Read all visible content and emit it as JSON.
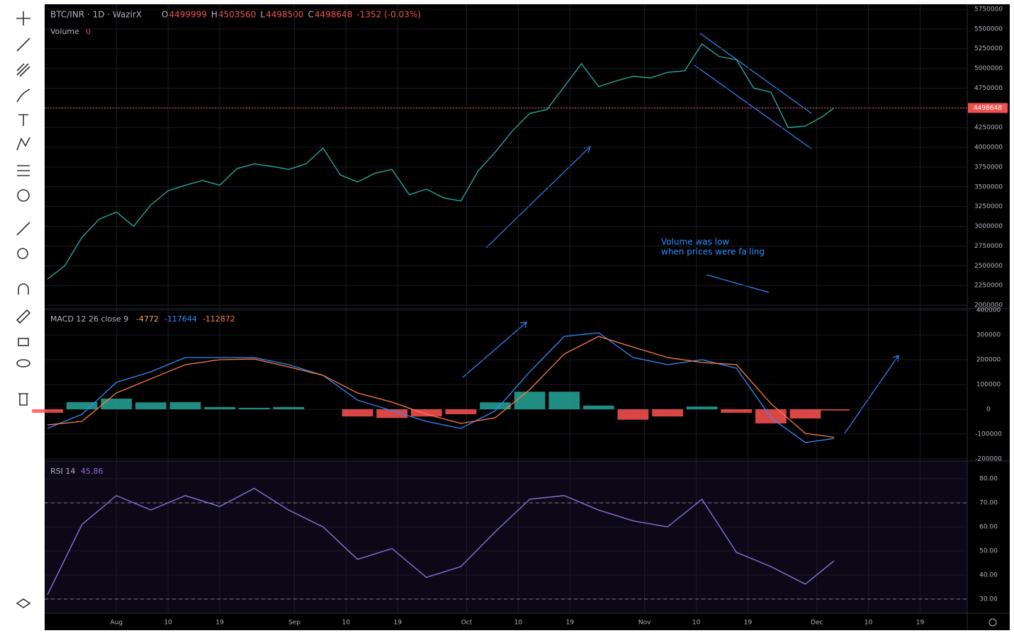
{
  "header": {
    "symbol": "BTC/INR · 1D · WazirX",
    "ohlc": [
      {
        "key": "O",
        "value": 4499999
      },
      {
        "key": "H",
        "value": 4503560
      },
      {
        "key": "L",
        "value": 4498500
      },
      {
        "key": "C",
        "value": 4498648
      }
    ],
    "change": "-1352 (-0.03%)"
  },
  "volume_label": {
    "name": "Volume",
    "value": 0
  },
  "annotation": [
    "Volume was low",
    "when prices were falling"
  ],
  "x_axis": {
    "xlim": [
      -0.5,
      160.2
    ],
    "xticks": [
      {
        "value": 12,
        "label": "Aug"
      },
      {
        "value": 21,
        "label": "10"
      },
      {
        "value": 30,
        "label": "19"
      },
      {
        "value": 43,
        "label": "Sep"
      },
      {
        "value": 52,
        "label": "10"
      },
      {
        "value": 61,
        "label": "19"
      },
      {
        "value": 73,
        "label": "Oct"
      },
      {
        "value": 82,
        "label": "10"
      },
      {
        "value": 91,
        "label": "19"
      },
      {
        "value": 104,
        "label": "Nov"
      },
      {
        "value": 113,
        "label": "10"
      },
      {
        "value": 122,
        "label": "19"
      },
      {
        "value": 134,
        "label": "Dec"
      },
      {
        "value": 143,
        "label": "10"
      },
      {
        "value": 152,
        "label": "19"
      }
    ]
  },
  "chart_data": [
    {
      "type": "line",
      "color": "#26a69a",
      "last_price": 4498648,
      "last_color": "#ef5350",
      "x": [
        0,
        3,
        6,
        9,
        12,
        15,
        18,
        21,
        24,
        27,
        30,
        33,
        36,
        39,
        42,
        45,
        48,
        51,
        54,
        57,
        60,
        63,
        66,
        69,
        72,
        75,
        78,
        81,
        84,
        87,
        90,
        93,
        96,
        99,
        102,
        105,
        108,
        111,
        114,
        117,
        120,
        123,
        126,
        129,
        132,
        135,
        137
      ],
      "values": [
        2330000,
        2500000,
        2860000,
        3090000,
        3180000,
        3000000,
        3270000,
        3450000,
        3520000,
        3580000,
        3520000,
        3730000,
        3790000,
        3760000,
        3720000,
        3790000,
        3990000,
        3650000,
        3560000,
        3670000,
        3720000,
        3400000,
        3470000,
        3360000,
        3320000,
        3700000,
        3940000,
        4210000,
        4430000,
        4480000,
        4770000,
        5060000,
        4770000,
        4840000,
        4900000,
        4880000,
        4950000,
        4970000,
        5310000,
        5150000,
        5110000,
        4750000,
        4700000,
        4250000,
        4270000,
        4390000,
        4500000
      ],
      "ylim": [
        1964000,
        5795000
      ],
      "yticks": [
        2000000,
        2250000,
        2500000,
        2750000,
        3000000,
        3250000,
        3500000,
        3750000,
        4000000,
        4250000,
        4500000,
        4750000,
        5000000,
        5250000,
        5500000,
        5750000
      ],
      "grid": true
    },
    {
      "type": "macd",
      "title": "MACD 12 26 close 9",
      "legend_values": [
        -4772,
        -117644,
        -112872
      ],
      "legend_colors": [
        "#f7a35c",
        "#2f8cff",
        "#ff7a45"
      ],
      "x": [
        0,
        6,
        12,
        18,
        24,
        30,
        36,
        42,
        48,
        54,
        60,
        66,
        72,
        78,
        84,
        90,
        96,
        102,
        108,
        114,
        120,
        126,
        132,
        137
      ],
      "histogram": {
        "color_positive": "#26a69a",
        "color_negative": "#ff5252",
        "values": [
          -14000,
          29000,
          43000,
          28000,
          29000,
          9000,
          6000,
          9000,
          0,
          -29000,
          -35000,
          -29000,
          -20000,
          28000,
          71000,
          71000,
          15000,
          -42000,
          -29000,
          11000,
          -14000,
          -57000,
          -37000,
          -4772
        ]
      },
      "series": [
        {
          "color": "#2f8cff",
          "values": [
            -77000,
            -20000,
            109000,
            151000,
            209000,
            209000,
            209000,
            180000,
            137000,
            37000,
            -6000,
            -49000,
            -77000,
            -6000,
            151000,
            294000,
            309000,
            209000,
            180000,
            200000,
            166000,
            -34000,
            -134000,
            -117644
          ]
        },
        {
          "color": "#ff7a45",
          "values": [
            -63000,
            -49000,
            66000,
            123000,
            180000,
            200000,
            203000,
            171000,
            137000,
            66000,
            29000,
            -20000,
            -57000,
            -34000,
            80000,
            223000,
            294000,
            251000,
            209000,
            189000,
            180000,
            23000,
            -97000,
            -112872
          ]
        }
      ],
      "ylim": [
        -205700,
        402900
      ],
      "yticks": [
        -200000,
        -100000,
        0,
        100000,
        200000,
        300000,
        400000
      ],
      "grid": true
    },
    {
      "type": "line",
      "title": "RSI 14",
      "last_value": 45.86,
      "color": "#8f6fd8",
      "band": [
        30,
        70
      ],
      "x": [
        0,
        6,
        12,
        18,
        24,
        30,
        36,
        42,
        48,
        54,
        60,
        66,
        72,
        78,
        84,
        90,
        96,
        102,
        108,
        114,
        120,
        126,
        132,
        137
      ],
      "values": [
        31.8,
        61,
        73,
        67,
        73,
        68.5,
        76,
        67,
        60,
        46.5,
        51,
        39,
        43.5,
        58,
        71.5,
        73,
        67,
        62.5,
        60,
        71.5,
        49.4,
        43.5,
        36.2,
        45.86
      ],
      "ylim": [
        24.4,
        87.1
      ],
      "yticks": [
        {
          "value": 30,
          "label": "30.00"
        },
        {
          "value": 40,
          "label": "40.00"
        },
        {
          "value": 50,
          "label": "50.00"
        },
        {
          "value": 60,
          "label": "60.00"
        },
        {
          "value": 70,
          "label": "70.00"
        },
        {
          "value": 80,
          "label": "80.00"
        }
      ],
      "grid": true
    }
  ]
}
